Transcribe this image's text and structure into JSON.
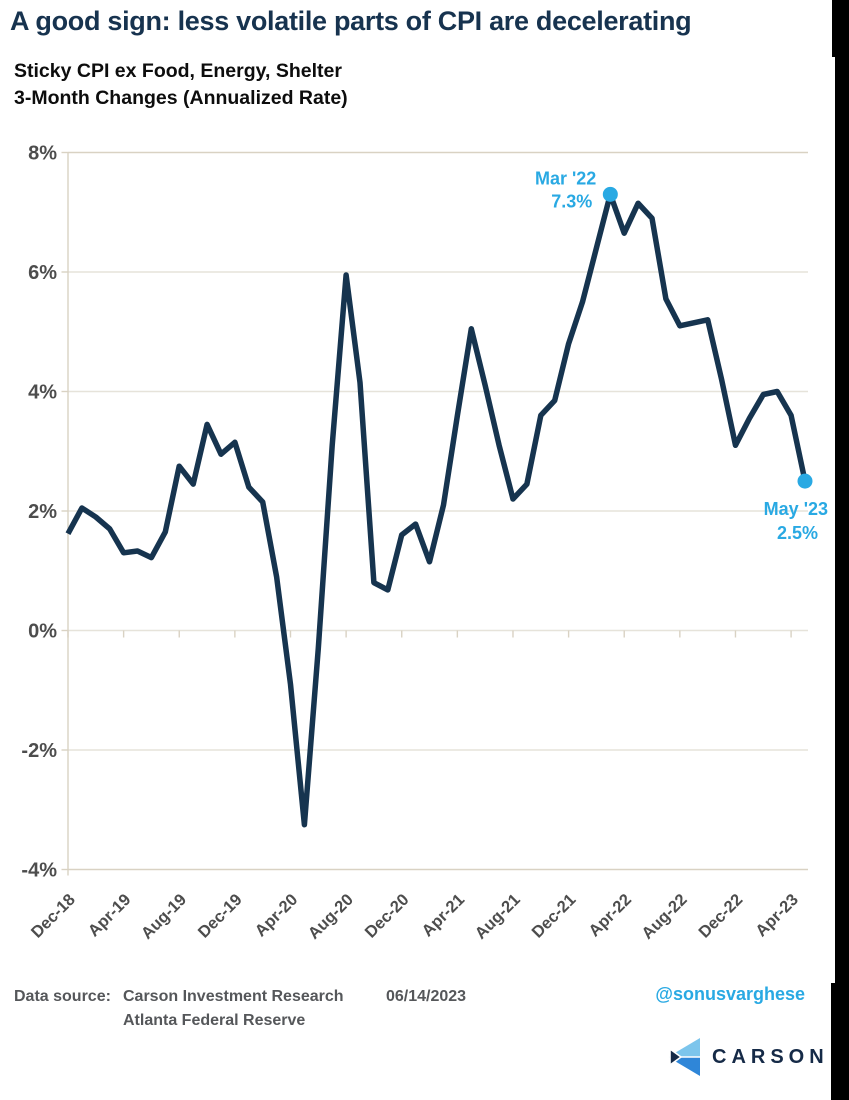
{
  "header": {
    "title": "A good sign: less volatile parts of CPI are decelerating",
    "subtitle_line1": "Sticky CPI ex Food, Energy, Shelter",
    "subtitle_line2": "3-Month Changes (Annualized Rate)"
  },
  "chart_data": {
    "type": "line",
    "title": "Sticky CPI ex Food, Energy, Shelter 3-Month Changes (Annualized Rate)",
    "series_name": "Sticky CPI ex Food, Energy, Shelter (3-month annualized %)",
    "x": [
      "Dec-18",
      "Jan-19",
      "Feb-19",
      "Mar-19",
      "Apr-19",
      "May-19",
      "Jun-19",
      "Jul-19",
      "Aug-19",
      "Sep-19",
      "Oct-19",
      "Nov-19",
      "Dec-19",
      "Jan-20",
      "Feb-20",
      "Mar-20",
      "Apr-20",
      "May-20",
      "Jun-20",
      "Jul-20",
      "Aug-20",
      "Sep-20",
      "Oct-20",
      "Nov-20",
      "Dec-20",
      "Jan-21",
      "Feb-21",
      "Mar-21",
      "Apr-21",
      "May-21",
      "Jun-21",
      "Jul-21",
      "Aug-21",
      "Sep-21",
      "Oct-21",
      "Nov-21",
      "Dec-21",
      "Jan-22",
      "Feb-22",
      "Mar-22",
      "Apr-22",
      "May-22",
      "Jun-22",
      "Jul-22",
      "Aug-22",
      "Sep-22",
      "Oct-22",
      "Nov-22",
      "Dec-22",
      "Jan-23",
      "Feb-23",
      "Mar-23",
      "Apr-23",
      "May-23"
    ],
    "values": [
      1.62,
      2.05,
      1.9,
      1.7,
      1.3,
      1.33,
      1.22,
      1.65,
      2.75,
      2.45,
      3.45,
      2.95,
      3.15,
      2.4,
      2.15,
      0.9,
      -0.9,
      -3.25,
      -0.3,
      3.1,
      5.95,
      4.15,
      0.8,
      0.68,
      1.6,
      1.78,
      1.15,
      2.1,
      3.6,
      5.05,
      4.1,
      3.1,
      2.2,
      2.45,
      3.6,
      3.85,
      4.8,
      5.5,
      6.4,
      7.3,
      6.65,
      7.15,
      6.9,
      5.55,
      5.1,
      5.15,
      5.2,
      4.2,
      3.1,
      3.55,
      3.95,
      4.0,
      3.6,
      2.5
    ],
    "ylim": [
      -4,
      8
    ],
    "yticks": [
      8,
      6,
      4,
      2,
      0,
      -2,
      -4
    ],
    "ytick_labels": [
      "8%",
      "6%",
      "4%",
      "2%",
      "0%",
      "-2%",
      "-4%"
    ],
    "xtick_every": 4,
    "xtick_labels": [
      "Dec-18",
      "Apr-19",
      "Aug-19",
      "Dec-19",
      "Apr-20",
      "Aug-20",
      "Dec-20",
      "Apr-21",
      "Aug-21",
      "Dec-21",
      "Apr-22",
      "Aug-22",
      "Dec-22",
      "Apr-23"
    ],
    "grid": true,
    "legend": "none",
    "line_color": "#16344f",
    "accent_color": "#29a9e3",
    "annotations": [
      {
        "line1": "Mar '22",
        "line2": "7.3%",
        "x_index": 39,
        "value": 7.3,
        "position": "above-left"
      },
      {
        "line1": "May '23",
        "line2": "2.5%",
        "x_index": 53,
        "value": 2.5,
        "position": "below-right"
      }
    ]
  },
  "footer": {
    "source_label": "Data source:",
    "source_line1": "Carson Investment Research",
    "source_line2": "Atlanta Federal Reserve",
    "date": "06/14/2023",
    "handle": "@sonusvarghese",
    "logo_text": "CARSON"
  },
  "colors": {
    "title": "#17334f",
    "line": "#16344f",
    "annotation_blue": "#29a9e3",
    "axis_label_gray": "#4d4d4d",
    "footer_gray": "#55575a",
    "gridline": "#e6e3da",
    "axis_line": "#d9d2c3",
    "logo_light_blue": "#7cc5ec",
    "logo_blue": "#2f86d8",
    "logo_navy": "#152a47"
  }
}
